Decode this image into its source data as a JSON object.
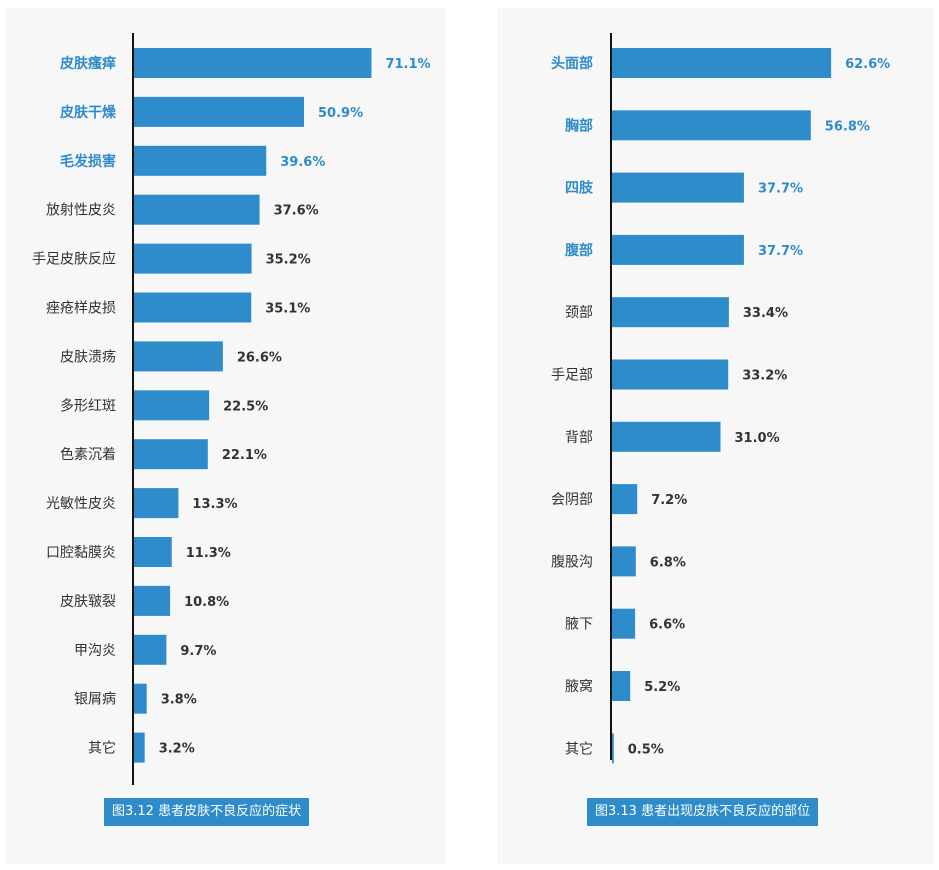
{
  "colors": {
    "bar": "#2e8ccb",
    "highlight_label": "#2e8ccb",
    "label": "#333333",
    "value": "#333333",
    "axis": "#111111",
    "caption_bg": "#2e8ccb",
    "caption_text": "#ffffff"
  },
  "chart_data": [
    {
      "type": "bar",
      "orientation": "horizontal",
      "title": "图3.12 患者皮肤不良反应的症状",
      "categories": [
        "皮肤瘙痒",
        "皮肤干燥",
        "毛发损害",
        "放射性皮炎",
        "手足皮肤反应",
        "痤疮样皮损",
        "皮肤溃疡",
        "多形红斑",
        "色素沉着",
        "光敏性皮炎",
        "口腔黏膜炎",
        "皮肤皲裂",
        "甲沟炎",
        "银屑病",
        "其它"
      ],
      "values": [
        71.1,
        50.9,
        39.6,
        37.6,
        35.2,
        35.1,
        26.6,
        22.5,
        22.1,
        13.3,
        11.3,
        10.8,
        9.7,
        3.8,
        3.2
      ],
      "value_labels": [
        "71.1%",
        "50.9%",
        "39.6%",
        "37.6%",
        "35.2%",
        "35.1%",
        "26.6%",
        "22.5%",
        "22.1%",
        "13.3%",
        "11.3%",
        "10.8%",
        "9.7%",
        "3.8%",
        "3.2%"
      ],
      "highlighted": [
        "皮肤瘙痒",
        "皮肤干燥",
        "毛发损害"
      ],
      "unit": "%"
    },
    {
      "type": "bar",
      "orientation": "horizontal",
      "title": "图3.13 患者出现皮肤不良反应的部位",
      "categories": [
        "头面部",
        "胸部",
        "四肢",
        "腹部",
        "颈部",
        "手足部",
        "背部",
        "会阴部",
        "腹股沟",
        "腋下",
        "腋窝",
        "其它"
      ],
      "values": [
        62.6,
        56.8,
        37.7,
        37.7,
        33.4,
        33.2,
        31.0,
        7.2,
        6.8,
        6.6,
        5.2,
        0.5
      ],
      "value_labels": [
        "62.6%",
        "56.8%",
        "37.7%",
        "37.7%",
        "33.4%",
        "33.2%",
        "31.0%",
        "7.2%",
        "6.8%",
        "6.6%",
        "5.2%",
        "0.5%"
      ],
      "highlighted": [
        "头面部",
        "胸部",
        "四肢",
        "腹部"
      ],
      "unit": "%"
    }
  ]
}
